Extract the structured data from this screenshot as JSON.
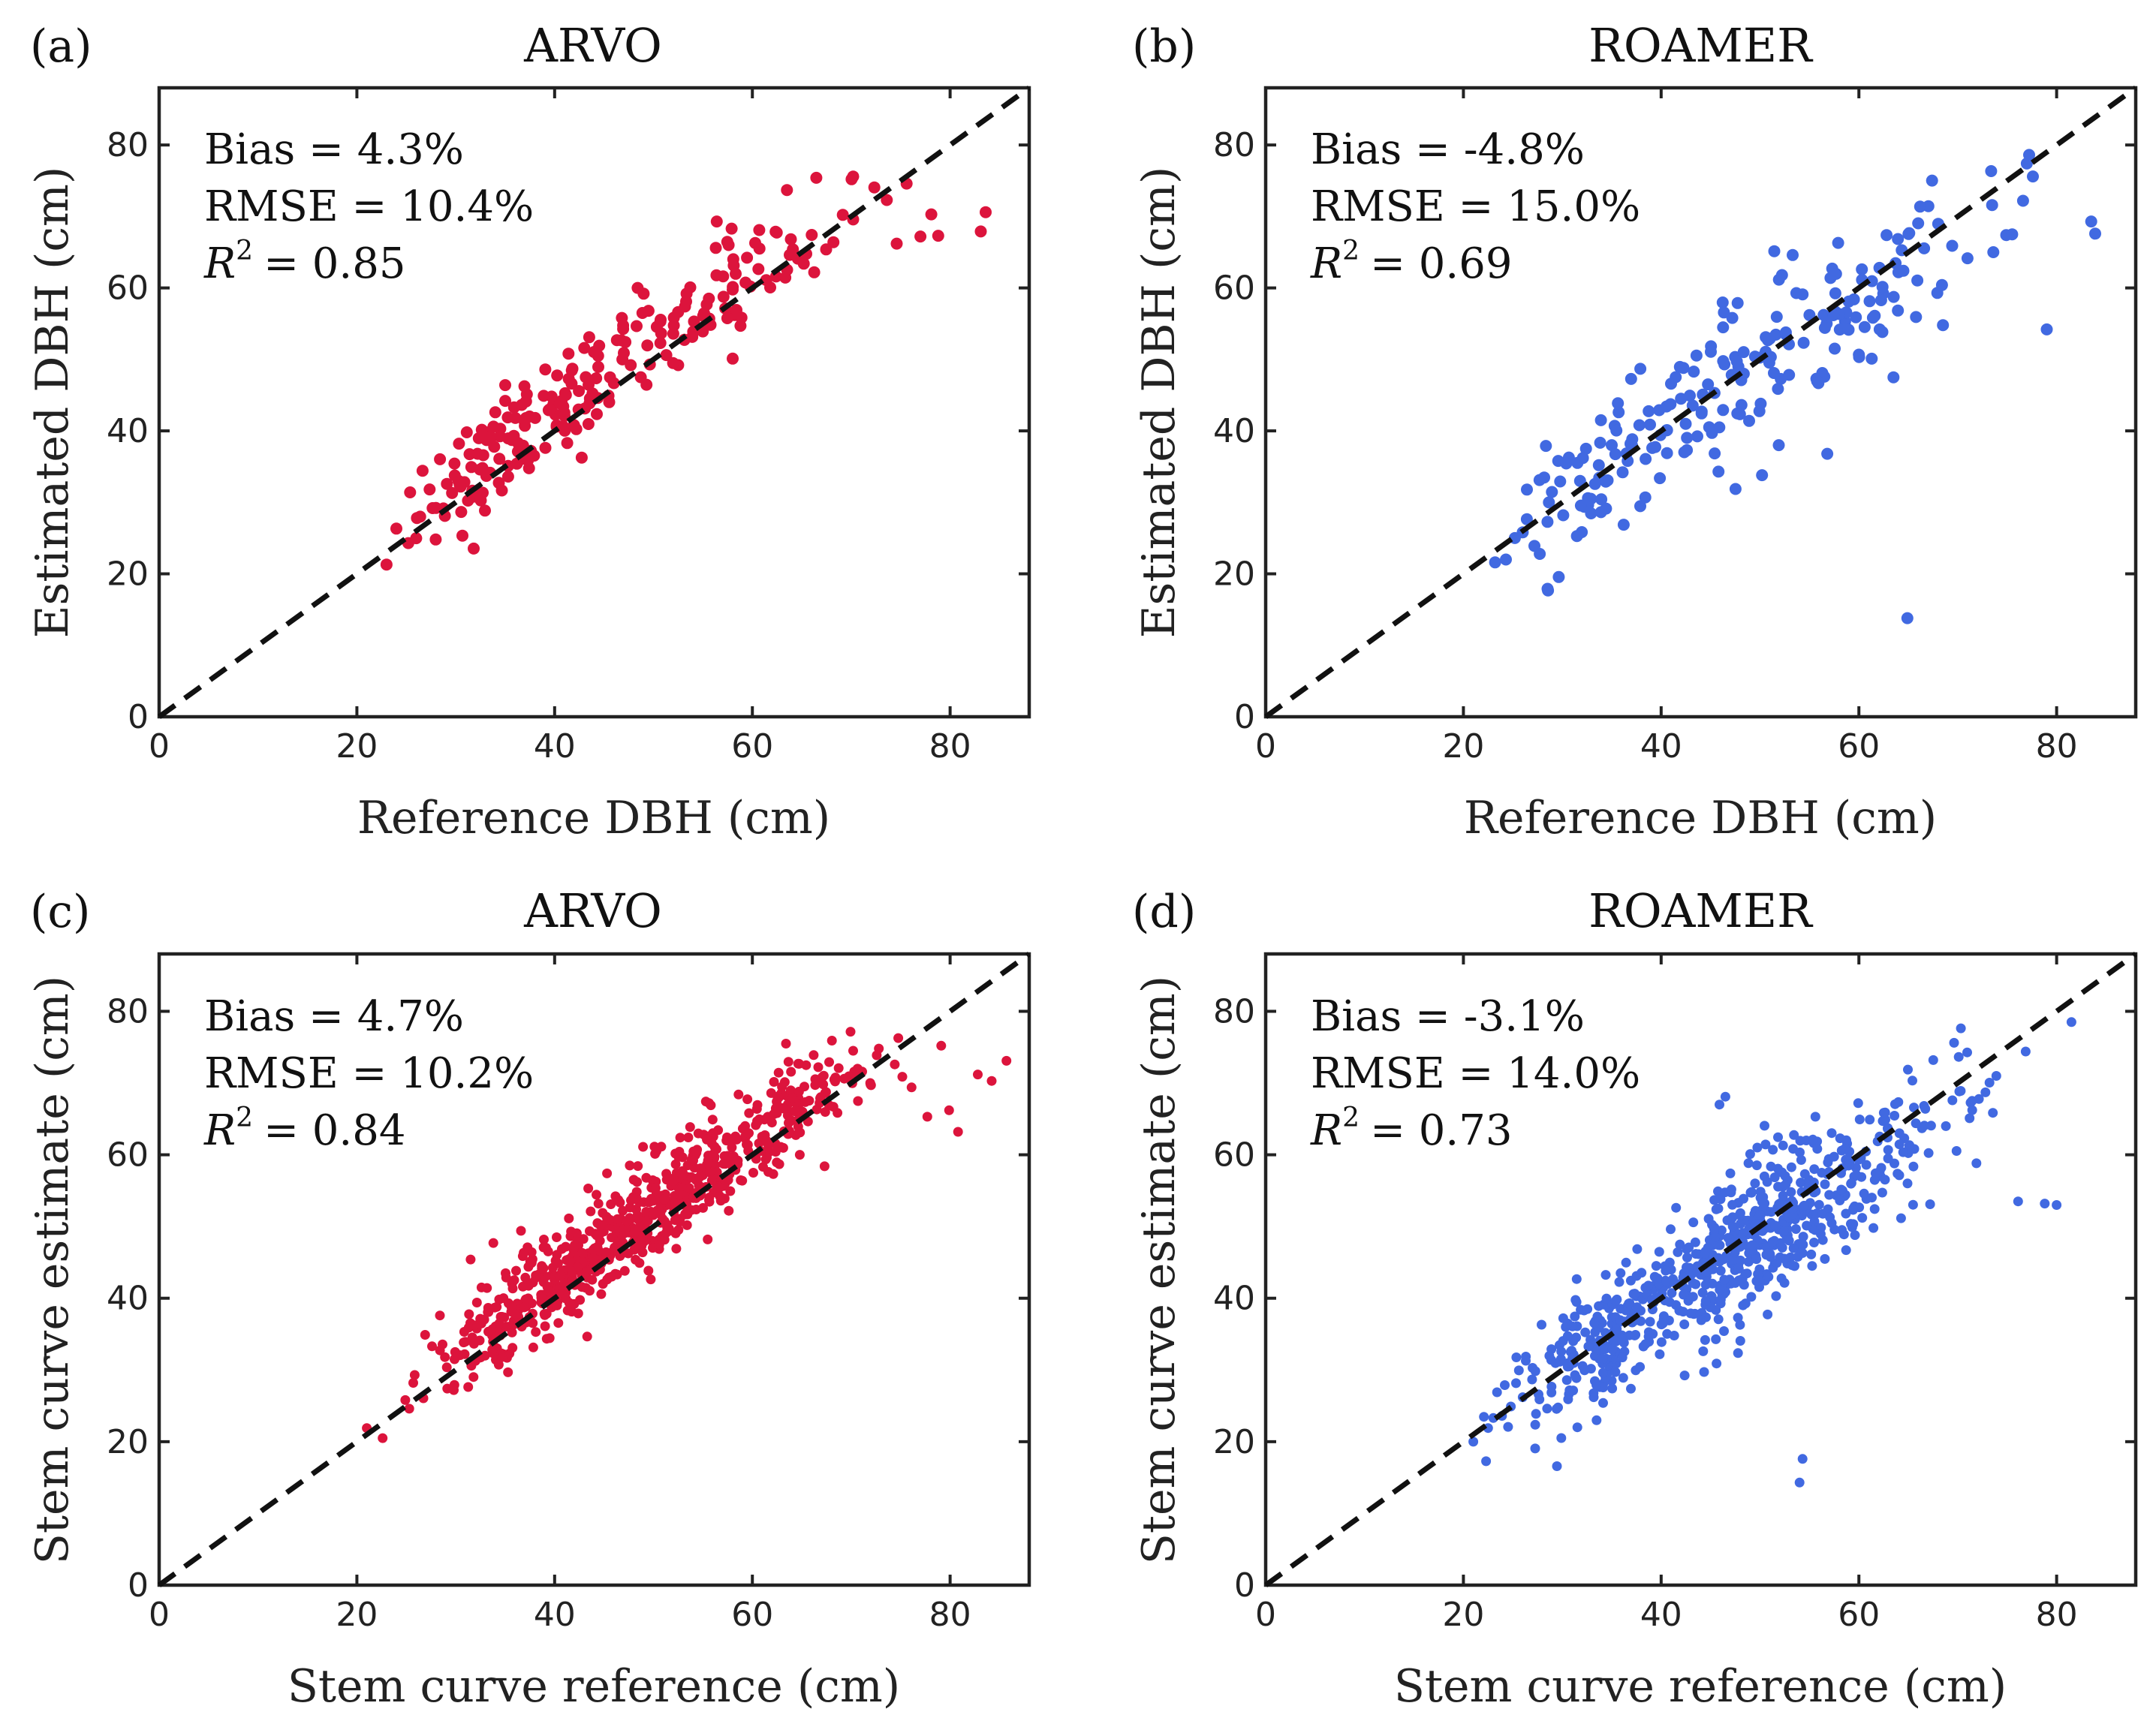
{
  "panels": [
    {
      "label": "(a)",
      "title": "ARVO",
      "xlabel": "Reference DBH (cm)",
      "ylabel": "Estimated DBH (cm)",
      "stats": {
        "bias": "Bias = 4.3%",
        "rmse": "RMSE = 10.4%",
        "r2_symbol": "R",
        "r2_exp": "2",
        "r2_value": "= 0.85"
      }
    },
    {
      "label": "(b)",
      "title": "ROAMER",
      "xlabel": "Reference DBH (cm)",
      "ylabel": "Estimated DBH (cm)",
      "stats": {
        "bias": "Bias = -4.8%",
        "rmse": "RMSE = 15.0%",
        "r2_symbol": "R",
        "r2_exp": "2",
        "r2_value": "= 0.69"
      }
    },
    {
      "label": "(c)",
      "title": "ARVO",
      "xlabel": "Stem curve reference (cm)",
      "ylabel": "Stem curve estimate (cm)",
      "stats": {
        "bias": "Bias = 4.7%",
        "rmse": "RMSE = 10.2%",
        "r2_symbol": "R",
        "r2_exp": "2",
        "r2_value": "= 0.84"
      }
    },
    {
      "label": "(d)",
      "title": "ROAMER",
      "xlabel": "Stem curve reference (cm)",
      "ylabel": "Stem curve estimate (cm)",
      "stats": {
        "bias": "Bias = -3.1%",
        "rmse": "RMSE = 14.0%",
        "r2_symbol": "R",
        "r2_exp": "2",
        "r2_value": "= 0.73"
      }
    }
  ],
  "chart_data": [
    {
      "type": "scatter",
      "panel": "(a)",
      "title": "ARVO",
      "xlabel": "Reference DBH (cm)",
      "ylabel": "Estimated DBH (cm)",
      "xlim": [
        0,
        88
      ],
      "ylim": [
        0,
        88
      ],
      "xticks": [
        0,
        20,
        40,
        60,
        80
      ],
      "yticks": [
        0,
        20,
        40,
        60,
        80
      ],
      "color": "#dc143c",
      "reference_line": "y = x",
      "generate": {
        "n": 175,
        "seed": 11,
        "bias": 0.043,
        "noise": 3.4,
        "clusters": [
          [
            33,
            36,
            4,
            0.28
          ],
          [
            46,
            48,
            7,
            0.42
          ],
          [
            58,
            60,
            5,
            0.25
          ],
          [
            68,
            67,
            3,
            0.05
          ]
        ]
      },
      "points": [
        [
          23.0,
          21.3
        ],
        [
          25.2,
          24.3
        ],
        [
          26.4,
          28.0
        ],
        [
          32.2,
          36.8
        ],
        [
          32.7,
          34.8
        ],
        [
          33.1,
          33.7
        ],
        [
          33.6,
          39.1
        ],
        [
          34.0,
          42.6
        ],
        [
          34.5,
          40.3
        ],
        [
          35.0,
          46.4
        ],
        [
          35.0,
          44.2
        ],
        [
          35.3,
          35.1
        ],
        [
          35.3,
          33.6
        ],
        [
          35.9,
          43.3
        ],
        [
          36.3,
          38.3
        ],
        [
          37.1,
          41.8
        ],
        [
          37.6,
          37.2
        ],
        [
          38.9,
          44.9
        ],
        [
          39.4,
          42.9
        ],
        [
          40.2,
          40.6
        ],
        [
          40.7,
          44.2
        ],
        [
          41.4,
          50.8
        ],
        [
          41.8,
          48.7
        ],
        [
          43.0,
          51.6
        ],
        [
          43.5,
          53.1
        ],
        [
          44.4,
          50.5
        ],
        [
          45.6,
          47.5
        ],
        [
          46.3,
          52.7
        ],
        [
          46.8,
          55.8
        ],
        [
          47.0,
          50.9
        ],
        [
          47.7,
          49.2
        ],
        [
          48.4,
          60.0
        ],
        [
          49.0,
          59.2
        ],
        [
          49.5,
          56.8
        ],
        [
          50.7,
          52.3
        ],
        [
          51.3,
          50.6
        ],
        [
          52.0,
          53.6
        ],
        [
          52.5,
          49.2
        ],
        [
          53.3,
          58.1
        ],
        [
          54.1,
          55.3
        ],
        [
          55.6,
          58.5
        ],
        [
          56.3,
          65.6
        ],
        [
          56.4,
          69.3
        ],
        [
          57.6,
          66.0
        ],
        [
          57.9,
          68.3
        ],
        [
          58.2,
          56.2
        ],
        [
          58.8,
          54.7
        ],
        [
          59.8,
          60.2
        ],
        [
          60.7,
          68.1
        ],
        [
          61.4,
          61.1
        ],
        [
          62.4,
          61.6
        ],
        [
          63.5,
          73.7
        ],
        [
          64.1,
          65.4
        ],
        [
          64.6,
          64.1
        ],
        [
          65.2,
          63.4
        ],
        [
          68.2,
          66.4
        ],
        [
          73.6,
          72.3
        ],
        [
          74.6,
          66.2
        ],
        [
          75.6,
          74.6
        ],
        [
          77.0,
          67.2
        ],
        [
          78.1,
          70.3
        ],
        [
          78.8,
          67.3
        ],
        [
          83.1,
          67.9
        ],
        [
          83.6,
          70.6
        ]
      ]
    },
    {
      "type": "scatter",
      "panel": "(b)",
      "title": "ROAMER",
      "xlabel": "Reference DBH (cm)",
      "ylabel": "Estimated DBH (cm)",
      "xlim": [
        0,
        88
      ],
      "ylim": [
        0,
        88
      ],
      "xticks": [
        0,
        20,
        40,
        60,
        80
      ],
      "yticks": [
        0,
        20,
        40,
        60,
        80
      ],
      "color": "#4169e1",
      "reference_line": "y = x",
      "generate": {
        "n": 165,
        "seed": 23,
        "bias": -0.048,
        "noise": 5.2,
        "clusters": [
          [
            35,
            36,
            5,
            0.3
          ],
          [
            47,
            47,
            7,
            0.42
          ],
          [
            59,
            58,
            6,
            0.23
          ],
          [
            72,
            70,
            5,
            0.05
          ]
        ]
      },
      "points": [
        [
          23.2,
          21.6
        ],
        [
          24.3,
          22.0
        ],
        [
          25.2,
          25.0
        ],
        [
          26.0,
          25.8
        ],
        [
          30.1,
          28.2
        ],
        [
          31.8,
          33.0
        ],
        [
          32.4,
          37.5
        ],
        [
          32.9,
          30.5
        ],
        [
          33.7,
          35.2
        ],
        [
          34.4,
          32.9
        ],
        [
          35.0,
          38.0
        ],
        [
          35.3,
          40.7
        ],
        [
          35.7,
          42.6
        ],
        [
          36.1,
          34.2
        ],
        [
          36.9,
          38.2
        ],
        [
          37.8,
          40.8
        ],
        [
          38.4,
          30.7
        ],
        [
          39.1,
          37.6
        ],
        [
          39.8,
          42.9
        ],
        [
          40.6,
          40.1
        ],
        [
          41.0,
          46.6
        ],
        [
          42.0,
          44.5
        ],
        [
          42.6,
          37.3
        ],
        [
          43.3,
          48.3
        ],
        [
          44.1,
          42.7
        ],
        [
          45.4,
          45.3
        ],
        [
          45.8,
          34.3
        ],
        [
          46.4,
          49.3
        ],
        [
          47.2,
          55.8
        ],
        [
          48.1,
          47.1
        ],
        [
          48.9,
          41.4
        ],
        [
          49.5,
          50.4
        ],
        [
          50.2,
          33.8
        ],
        [
          50.8,
          52.7
        ],
        [
          51.4,
          48.1
        ],
        [
          51.9,
          38.0
        ],
        [
          52.6,
          53.5
        ],
        [
          53.3,
          64.6
        ],
        [
          54.3,
          59.1
        ],
        [
          55.0,
          56.2
        ],
        [
          55.7,
          47.3
        ],
        [
          56.3,
          48.1
        ],
        [
          56.8,
          36.8
        ],
        [
          57.3,
          62.7
        ],
        [
          57.9,
          66.3
        ],
        [
          58.6,
          55.3
        ],
        [
          59.5,
          58.4
        ],
        [
          60.3,
          62.6
        ],
        [
          61.3,
          50.1
        ],
        [
          61.6,
          56.1
        ],
        [
          62.1,
          54.2
        ],
        [
          62.8,
          67.4
        ],
        [
          63.5,
          47.5
        ],
        [
          64.0,
          62.2
        ],
        [
          64.5,
          62.4
        ],
        [
          64.9,
          13.8
        ],
        [
          68.4,
          60.4
        ],
        [
          68.5,
          54.8
        ],
        [
          73.6,
          65.0
        ],
        [
          74.9,
          67.4
        ],
        [
          75.5,
          67.5
        ],
        [
          76.6,
          72.2
        ],
        [
          77.6,
          75.6
        ],
        [
          79.0,
          54.2
        ],
        [
          83.5,
          69.3
        ],
        [
          83.9,
          67.6
        ]
      ]
    },
    {
      "type": "scatter",
      "panel": "(c)",
      "title": "ARVO",
      "xlabel": "Stem curve reference (cm)",
      "ylabel": "Stem curve estimate (cm)",
      "xlim": [
        0,
        88
      ],
      "ylim": [
        0,
        88
      ],
      "xticks": [
        0,
        20,
        40,
        60,
        80
      ],
      "yticks": [
        0,
        20,
        40,
        60,
        80
      ],
      "color": "#dc143c",
      "reference_line": "y = x",
      "generate": {
        "n": 700,
        "seed": 37,
        "bias": 0.047,
        "noise": 3.3,
        "clusters": [
          [
            36,
            38,
            4,
            0.2
          ],
          [
            46,
            48,
            6,
            0.4
          ],
          [
            56,
            58,
            6,
            0.32
          ],
          [
            66,
            66,
            4,
            0.08
          ]
        ]
      },
      "points": [
        [
          21.0,
          21.9
        ],
        [
          22.6,
          20.5
        ],
        [
          24.9,
          25.8
        ],
        [
          25.3,
          24.6
        ],
        [
          25.7,
          28.2
        ],
        [
          26.9,
          34.9
        ],
        [
          27.6,
          33.3
        ],
        [
          28.4,
          37.6
        ],
        [
          29.8,
          27.2
        ],
        [
          30.9,
          32.2
        ],
        [
          31.5,
          45.4
        ],
        [
          32.6,
          41.5
        ],
        [
          33.8,
          47.7
        ],
        [
          34.5,
          34.8
        ],
        [
          35.7,
          38.4
        ],
        [
          36.6,
          49.4
        ],
        [
          37.1,
          36.6
        ],
        [
          38.7,
          44.5
        ],
        [
          40.2,
          48.5
        ],
        [
          41.9,
          42.1
        ],
        [
          43.4,
          55.3
        ],
        [
          44.6,
          44.0
        ],
        [
          45.3,
          57.4
        ],
        [
          46.8,
          49.7
        ],
        [
          47.6,
          58.5
        ],
        [
          48.9,
          46.4
        ],
        [
          50.3,
          60.5
        ],
        [
          51.6,
          49.4
        ],
        [
          52.7,
          62.4
        ],
        [
          54.3,
          54.6
        ],
        [
          55.8,
          66.9
        ],
        [
          57.2,
          53.9
        ],
        [
          58.6,
          68.4
        ],
        [
          60.1,
          57.5
        ],
        [
          61.9,
          68.6
        ],
        [
          63.4,
          75.5
        ],
        [
          64.8,
          60.0
        ],
        [
          66.2,
          73.9
        ],
        [
          67.3,
          58.4
        ],
        [
          68.2,
          66.7
        ],
        [
          70.3,
          71.6
        ],
        [
          72.0,
          69.7
        ],
        [
          74.4,
          72.6
        ],
        [
          76.1,
          69.4
        ],
        [
          77.7,
          65.3
        ],
        [
          79.1,
          75.2
        ],
        [
          79.9,
          66.2
        ],
        [
          80.8,
          63.2
        ],
        [
          82.8,
          71.2
        ],
        [
          84.2,
          70.3
        ],
        [
          85.7,
          73.1
        ]
      ]
    },
    {
      "type": "scatter",
      "panel": "(d)",
      "title": "ROAMER",
      "xlabel": "Stem curve reference (cm)",
      "ylabel": "Stem curve estimate (cm)",
      "xlim": [
        0,
        88
      ],
      "ylim": [
        0,
        88
      ],
      "xticks": [
        0,
        20,
        40,
        60,
        80
      ],
      "yticks": [
        0,
        20,
        40,
        60,
        80
      ],
      "color": "#4169e1",
      "reference_line": "y = x",
      "generate": {
        "n": 680,
        "seed": 53,
        "bias": -0.031,
        "noise": 4.6,
        "clusters": [
          [
            34,
            35,
            5,
            0.27
          ],
          [
            46,
            45,
            6,
            0.38
          ],
          [
            55,
            53,
            5,
            0.27
          ],
          [
            66,
            64,
            5,
            0.08
          ]
        ]
      },
      "points": [
        [
          21.0,
          20.0
        ],
        [
          22.5,
          21.9
        ],
        [
          23.9,
          23.6
        ],
        [
          24.8,
          24.9
        ],
        [
          26.0,
          26.2
        ],
        [
          27.6,
          26.6
        ],
        [
          28.9,
          32.9
        ],
        [
          30.7,
          30.5
        ],
        [
          32.2,
          38.3
        ],
        [
          33.8,
          34.1
        ],
        [
          35.0,
          28.5
        ],
        [
          35.9,
          43.5
        ],
        [
          37.4,
          34.9
        ],
        [
          39.2,
          41.7
        ],
        [
          40.8,
          36.9
        ],
        [
          41.9,
          47.5
        ],
        [
          43.3,
          37.8
        ],
        [
          44.6,
          43.0
        ],
        [
          45.6,
          30.9
        ],
        [
          45.9,
          67.0
        ],
        [
          46.5,
          68.1
        ],
        [
          47.8,
          53.3
        ],
        [
          49.0,
          60.1
        ],
        [
          50.1,
          42.5
        ],
        [
          51.3,
          60.7
        ],
        [
          52.7,
          49.8
        ],
        [
          54.0,
          14.3
        ],
        [
          54.3,
          17.6
        ],
        [
          55.6,
          65.3
        ],
        [
          56.8,
          57.3
        ],
        [
          58.1,
          62.3
        ],
        [
          59.6,
          48.8
        ],
        [
          61.1,
          64.9
        ],
        [
          62.2,
          57.0
        ],
        [
          64.1,
          63.0
        ],
        [
          65.6,
          60.8
        ],
        [
          67.2,
          53.1
        ],
        [
          68.8,
          64.0
        ],
        [
          70.3,
          68.9
        ],
        [
          71.2,
          65.1
        ],
        [
          72.8,
          68.7
        ],
        [
          73.9,
          71.0
        ],
        [
          76.1,
          53.5
        ],
        [
          78.8,
          53.2
        ],
        [
          80.0,
          53.0
        ],
        [
          81.5,
          78.5
        ]
      ]
    }
  ]
}
